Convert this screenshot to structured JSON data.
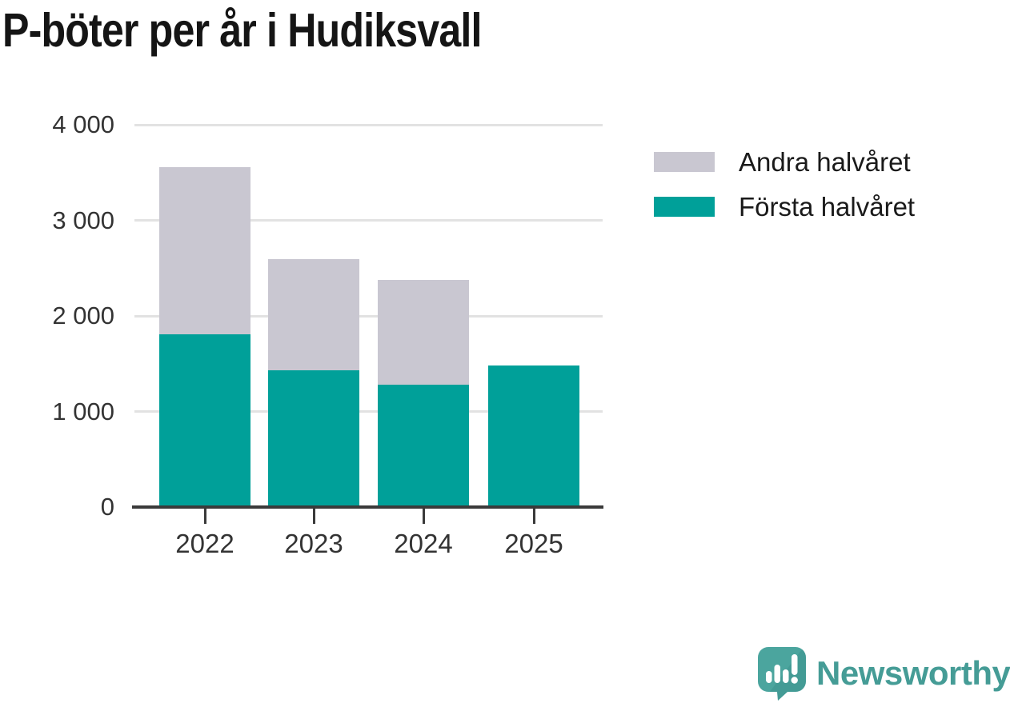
{
  "title": "P-böter per år i Hudiksvall",
  "chart_data": {
    "type": "bar",
    "stacked": true,
    "title": "P-böter per år i Hudiksvall",
    "categories": [
      "2022",
      "2023",
      "2024",
      "2025"
    ],
    "series": [
      {
        "name": "Första halvåret",
        "color": "#00a099",
        "values": [
          1810,
          1430,
          1280,
          1480
        ]
      },
      {
        "name": "Andra halvåret",
        "color": "#c9c7d1",
        "values": [
          1750,
          1160,
          1100,
          0
        ]
      }
    ],
    "xlabel": "",
    "ylabel": "",
    "ylim": [
      0,
      4000
    ],
    "yticks": [
      {
        "value": 0,
        "label": "0"
      },
      {
        "value": 1000,
        "label": "1 000"
      },
      {
        "value": 2000,
        "label": "2 000"
      },
      {
        "value": 3000,
        "label": "3 000"
      },
      {
        "value": 4000,
        "label": "4 000"
      }
    ],
    "grid": "horizontal",
    "legend_position": "right"
  },
  "legend": {
    "items": [
      {
        "label": "Andra halvåret",
        "color": "#c9c7d1"
      },
      {
        "label": "Första halvåret",
        "color": "#00a099"
      }
    ]
  },
  "branding": {
    "wordmark": "Newsworthy",
    "logo_icon": "newsworthy-speech-bubble-bar-chart-icon",
    "wordmark_color": "#459c96",
    "icon_color": "#4ba59e"
  },
  "colors": {
    "first_half": "#00a099",
    "second_half": "#c9c7d1",
    "axis": "#3a3a3a",
    "grid": "#e2e2e2",
    "title": "#151515",
    "tick_label": "#333333"
  }
}
